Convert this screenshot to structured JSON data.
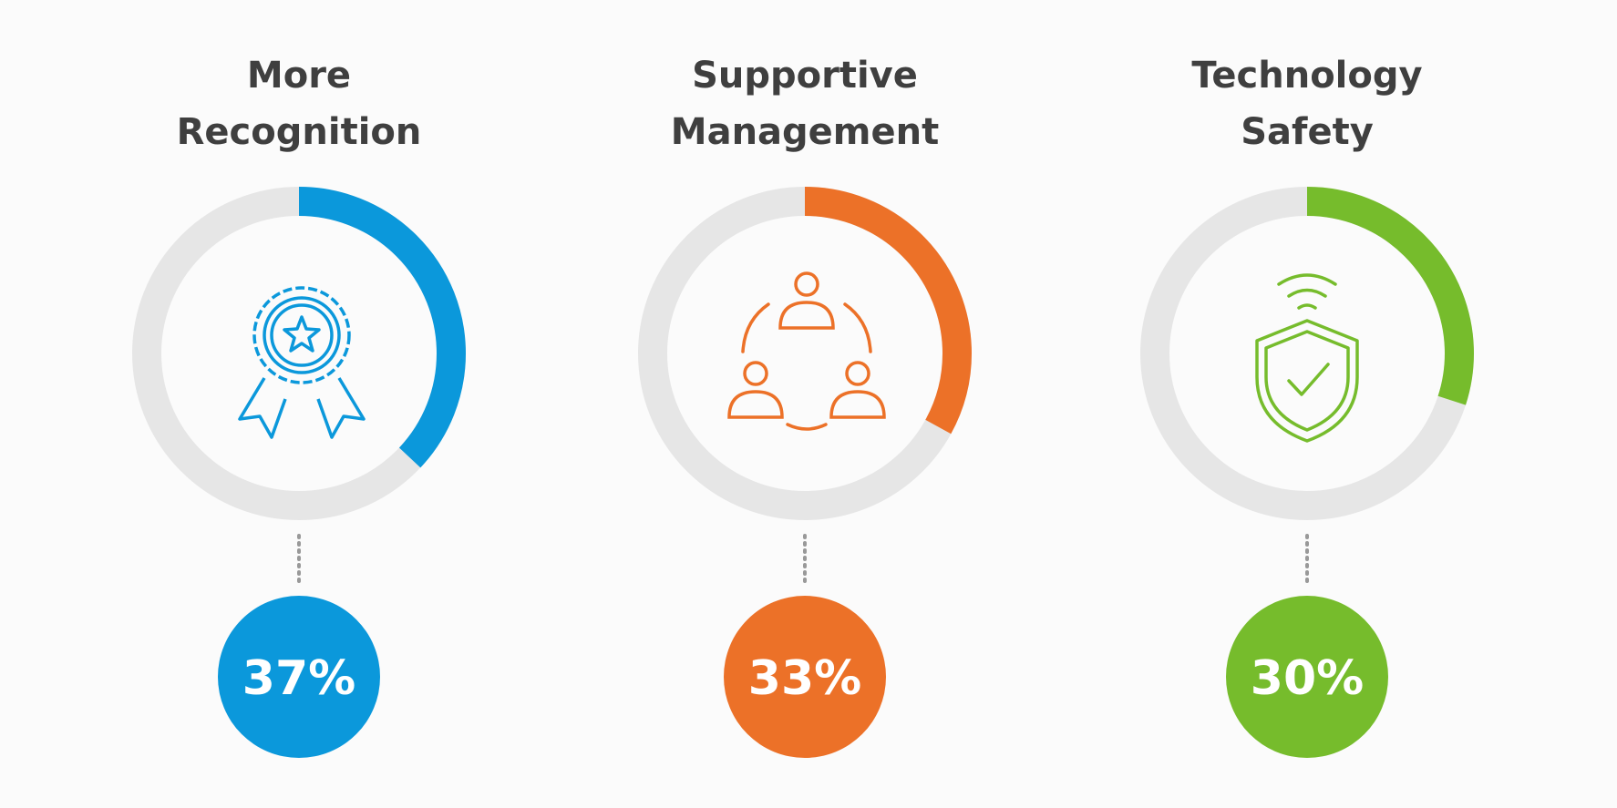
{
  "chart_data": [
    {
      "type": "donut",
      "title": "More Recognition",
      "values": [
        37
      ],
      "value_labels": [
        "37%"
      ],
      "color": "#0b98db"
    },
    {
      "type": "donut",
      "title": "Supportive Management",
      "values": [
        33
      ],
      "value_labels": [
        "33%"
      ],
      "color": "#ec7128"
    },
    {
      "type": "donut",
      "title": "Technology Safety",
      "values": [
        30
      ],
      "value_labels": [
        "30%"
      ],
      "color": "#76bc2c"
    }
  ]
}
